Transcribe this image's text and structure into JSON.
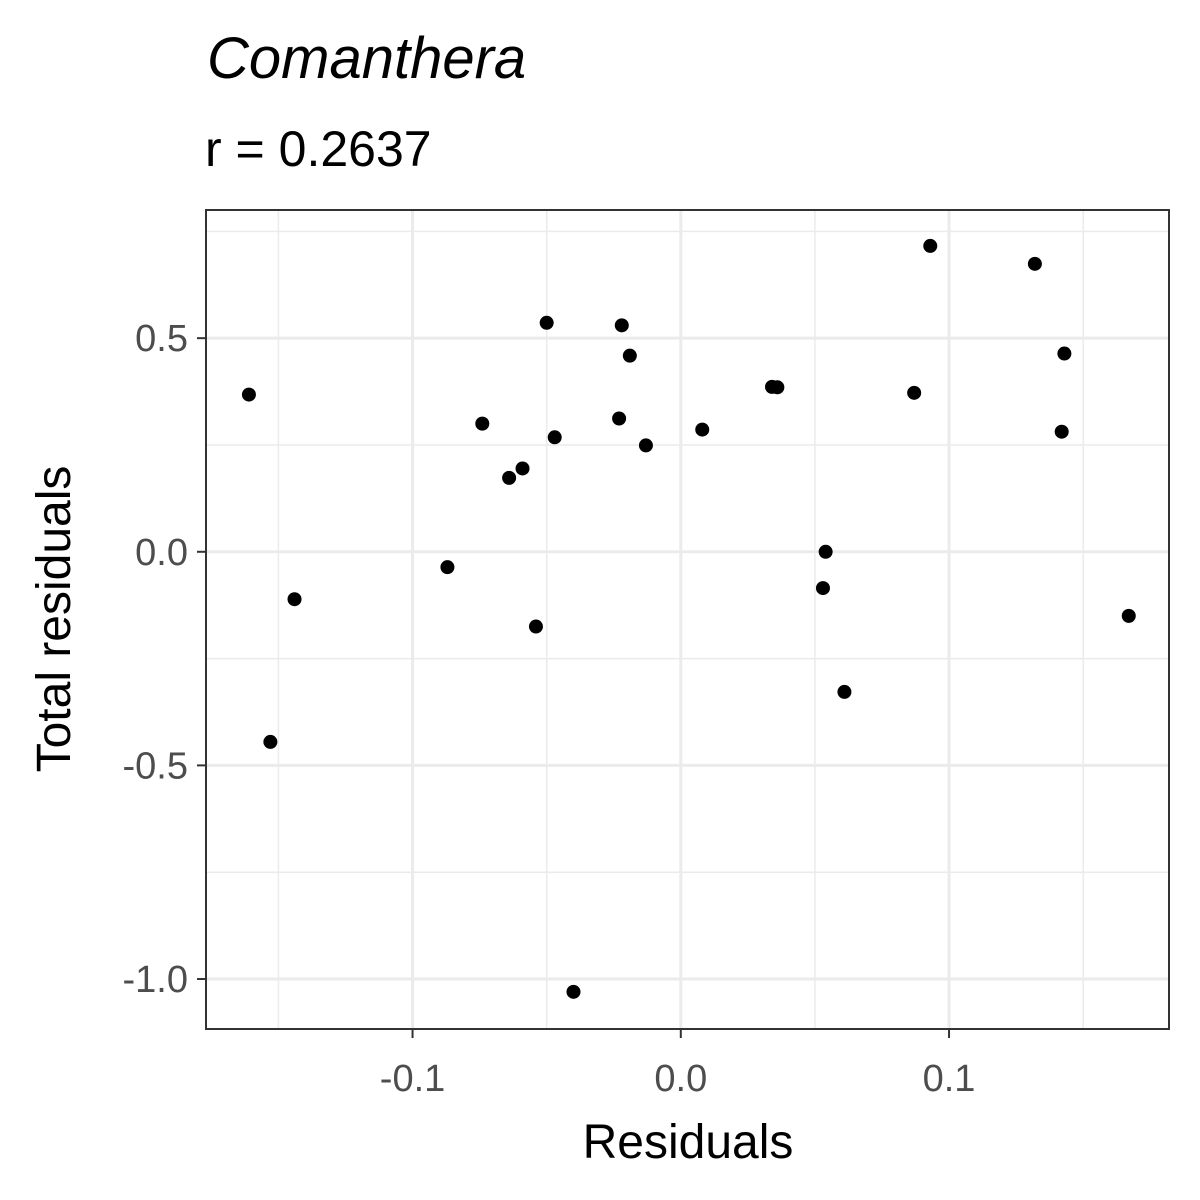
{
  "chart_data": {
    "type": "scatter",
    "title": "Comanthera",
    "subtitle": "r = 0.2637",
    "xlabel": "Residuals",
    "ylabel": "Total residuals",
    "xlim": [
      -0.177,
      0.182
    ],
    "ylim": [
      -1.117,
      0.8
    ],
    "x_ticks": [
      -0.1,
      0.0,
      0.1
    ],
    "x_tick_labels": [
      "-0.1",
      "0.0",
      "0.1"
    ],
    "x_minor": [
      -0.15,
      -0.05,
      0.05,
      0.15
    ],
    "y_ticks": [
      -1.0,
      -0.5,
      0.0,
      0.5
    ],
    "y_tick_labels": [
      "-1.0",
      "-0.5",
      "0.0",
      "0.5"
    ],
    "y_minor": [
      -0.75,
      -0.25,
      0.25,
      0.75
    ],
    "grid": true,
    "point_color": "#000000",
    "points": [
      {
        "x": -0.161,
        "y": 0.368
      },
      {
        "x": -0.153,
        "y": -0.445
      },
      {
        "x": -0.144,
        "y": -0.111
      },
      {
        "x": -0.087,
        "y": -0.036
      },
      {
        "x": -0.074,
        "y": 0.3
      },
      {
        "x": -0.064,
        "y": 0.173
      },
      {
        "x": -0.059,
        "y": 0.195
      },
      {
        "x": -0.054,
        "y": -0.175
      },
      {
        "x": -0.05,
        "y": 0.536
      },
      {
        "x": -0.047,
        "y": 0.268
      },
      {
        "x": -0.04,
        "y": -1.03
      },
      {
        "x": -0.023,
        "y": 0.312
      },
      {
        "x": -0.022,
        "y": 0.53
      },
      {
        "x": -0.019,
        "y": 0.459
      },
      {
        "x": -0.013,
        "y": 0.249
      },
      {
        "x": 0.008,
        "y": 0.286
      },
      {
        "x": 0.034,
        "y": 0.386
      },
      {
        "x": 0.036,
        "y": 0.385
      },
      {
        "x": 0.053,
        "y": -0.085
      },
      {
        "x": 0.054,
        "y": 0.0
      },
      {
        "x": 0.061,
        "y": -0.328
      },
      {
        "x": 0.087,
        "y": 0.372
      },
      {
        "x": 0.093,
        "y": 0.716
      },
      {
        "x": 0.132,
        "y": 0.674
      },
      {
        "x": 0.142,
        "y": 0.281
      },
      {
        "x": 0.143,
        "y": 0.464
      },
      {
        "x": 0.167,
        "y": -0.15
      }
    ]
  }
}
